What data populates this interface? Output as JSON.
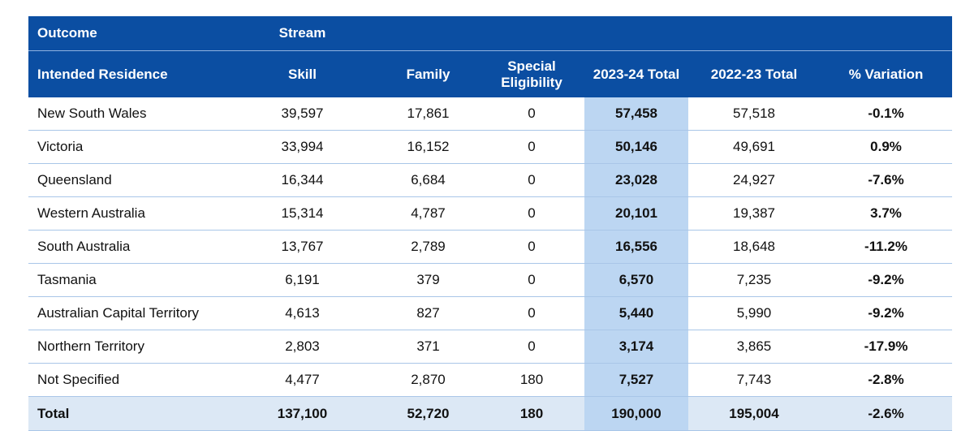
{
  "header": {
    "row1": [
      "Outcome",
      "Stream"
    ],
    "columns": [
      "Intended Residence",
      "Skill",
      "Family",
      "Special Eligibility",
      "2023-24 Total",
      "2022-23 Total",
      "% Variation"
    ]
  },
  "rows": [
    [
      "New South Wales",
      "39,597",
      "17,861",
      "0",
      "57,458",
      "57,518",
      "-0.1%"
    ],
    [
      "Victoria",
      "33,994",
      "16,152",
      "0",
      "50,146",
      "49,691",
      "0.9%"
    ],
    [
      "Queensland",
      "16,344",
      "6,684",
      "0",
      "23,028",
      "24,927",
      "-7.6%"
    ],
    [
      "Western Australia",
      "15,314",
      "4,787",
      "0",
      "20,101",
      "19,387",
      "3.7%"
    ],
    [
      "South Australia",
      "13,767",
      "2,789",
      "0",
      "16,556",
      "18,648",
      "-11.2%"
    ],
    [
      "Tasmania",
      "6,191",
      "379",
      "0",
      "6,570",
      "7,235",
      "-9.2%"
    ],
    [
      "Australian Capital Territory",
      "4,613",
      "827",
      "0",
      "5,440",
      "5,990",
      "-9.2%"
    ],
    [
      "Northern Territory",
      "2,803",
      "371",
      "0",
      "3,174",
      "3,865",
      "-17.9%"
    ],
    [
      "Not Specified",
      "4,477",
      "2,870",
      "180",
      "7,527",
      "7,743",
      "-2.8%"
    ]
  ],
  "total": [
    "Total",
    "137,100",
    "52,720",
    "180",
    "190,000",
    "195,004",
    "-2.6%"
  ]
}
